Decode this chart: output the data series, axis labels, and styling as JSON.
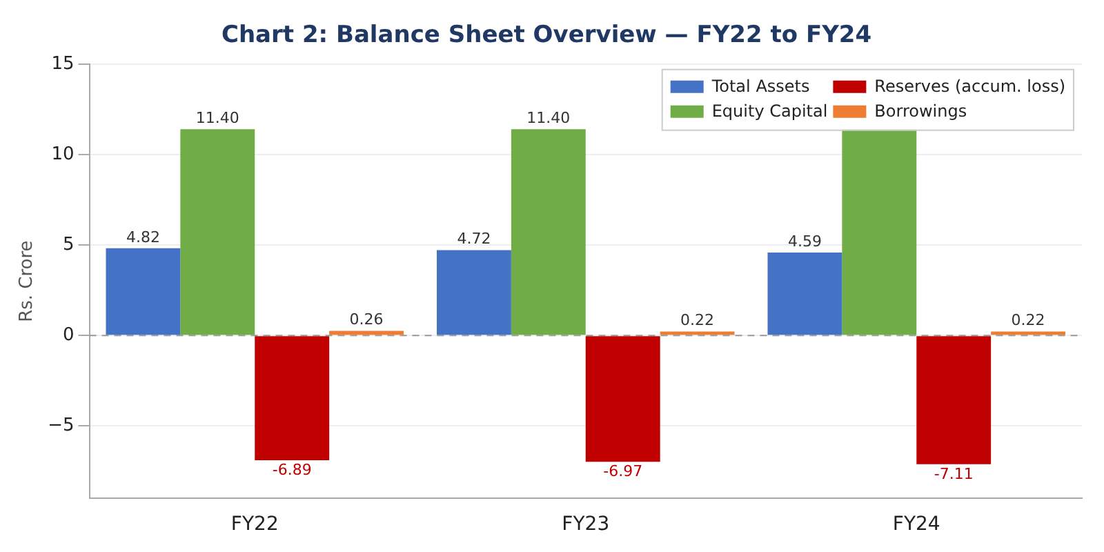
{
  "chart_data": {
    "type": "bar",
    "title": "Chart 2: Balance Sheet Overview — FY22 to FY24",
    "ylabel": "Rs. Crore",
    "categories": [
      "FY22",
      "FY23",
      "FY24"
    ],
    "series": [
      {
        "name": "Total Assets",
        "color": "#4472c4",
        "values": [
          4.82,
          4.72,
          4.59
        ],
        "value_labels": [
          "4.82",
          "4.72",
          "4.59"
        ]
      },
      {
        "name": "Equity Capital",
        "color": "#70ad47",
        "values": [
          11.4,
          11.4,
          11.4
        ],
        "value_labels": [
          "11.40",
          "11.40",
          null
        ]
      },
      {
        "name": "Reserves (accum. loss)",
        "color": "#c00000",
        "values": [
          -6.89,
          -6.97,
          -7.11
        ],
        "value_labels": [
          "-6.89",
          "-6.97",
          "-7.11"
        ]
      },
      {
        "name": "Borrowings",
        "color": "#ed7d31",
        "values": [
          0.26,
          0.22,
          0.22
        ],
        "value_labels": [
          "0.26",
          "0.22",
          "0.22"
        ]
      }
    ],
    "ylim": [
      -9,
      15
    ],
    "yticks": [
      {
        "value": -5,
        "label": "−5"
      },
      0,
      5,
      10,
      15
    ],
    "grid": "y",
    "legend": "top right",
    "ref_lines": [
      {
        "axis": "y",
        "value": 0,
        "color": "#999999",
        "line_style": "dashed"
      }
    ]
  }
}
